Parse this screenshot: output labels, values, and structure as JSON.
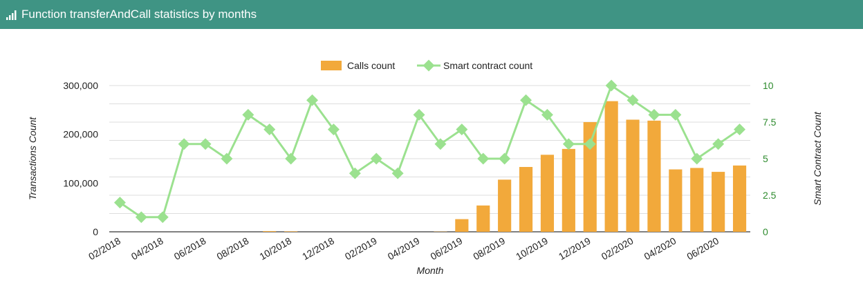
{
  "header": {
    "title": "Function transferAndCall statistics by months",
    "icon": "bar-chart-icon"
  },
  "colors": {
    "header_bg": "#3f9484",
    "bar": "#f2a93b",
    "line": "#9be18f",
    "right_axis": "#2e8b2e",
    "grid": "#dddddd"
  },
  "chart_data": {
    "type": "bar",
    "categories": [
      "02/2018",
      "03/2018",
      "04/2018",
      "05/2018",
      "06/2018",
      "07/2018",
      "08/2018",
      "09/2018",
      "10/2018",
      "11/2018",
      "12/2018",
      "01/2019",
      "02/2019",
      "03/2019",
      "04/2019",
      "05/2019",
      "06/2019",
      "07/2019",
      "08/2019",
      "09/2019",
      "10/2019",
      "11/2019",
      "12/2019",
      "01/2020",
      "02/2020",
      "03/2020",
      "04/2020",
      "05/2020",
      "06/2020",
      "07/2020"
    ],
    "x_tick_labels": [
      "02/2018",
      "04/2018",
      "06/2018",
      "08/2018",
      "10/2018",
      "12/2018",
      "02/2019",
      "04/2019",
      "06/2019",
      "08/2019",
      "10/2019",
      "12/2019",
      "02/2020",
      "04/2020",
      "06/2020"
    ],
    "series": [
      {
        "name": "Calls count",
        "type": "bar",
        "axis": "left",
        "values": [
          0,
          0,
          0,
          0,
          0,
          0,
          0,
          1500,
          1000,
          0,
          0,
          0,
          0,
          0,
          0,
          500,
          26000,
          54000,
          107000,
          133000,
          158000,
          170000,
          225000,
          268000,
          230000,
          228000,
          128000,
          131000,
          123000,
          136000
        ]
      },
      {
        "name": "Smart contract count",
        "type": "line",
        "axis": "right",
        "values": [
          2,
          1,
          1,
          6,
          6,
          5,
          8,
          7,
          5,
          9,
          7,
          4,
          5,
          4,
          8,
          6,
          7,
          5,
          5,
          9,
          8,
          6,
          6,
          10,
          9,
          8,
          8,
          5,
          6,
          7
        ]
      }
    ],
    "xlabel": "Month",
    "ylabel": "Transactions Count",
    "y2label": "Smart Contract Count",
    "ylim": [
      0,
      300000
    ],
    "y_ticks": [
      "0",
      "100,000",
      "200,000",
      "300,000"
    ],
    "y2lim": [
      0,
      10
    ],
    "y2_ticks": [
      "0",
      "2.5",
      "5",
      "7.5",
      "10"
    ],
    "grid": true,
    "legend_position": "top"
  }
}
